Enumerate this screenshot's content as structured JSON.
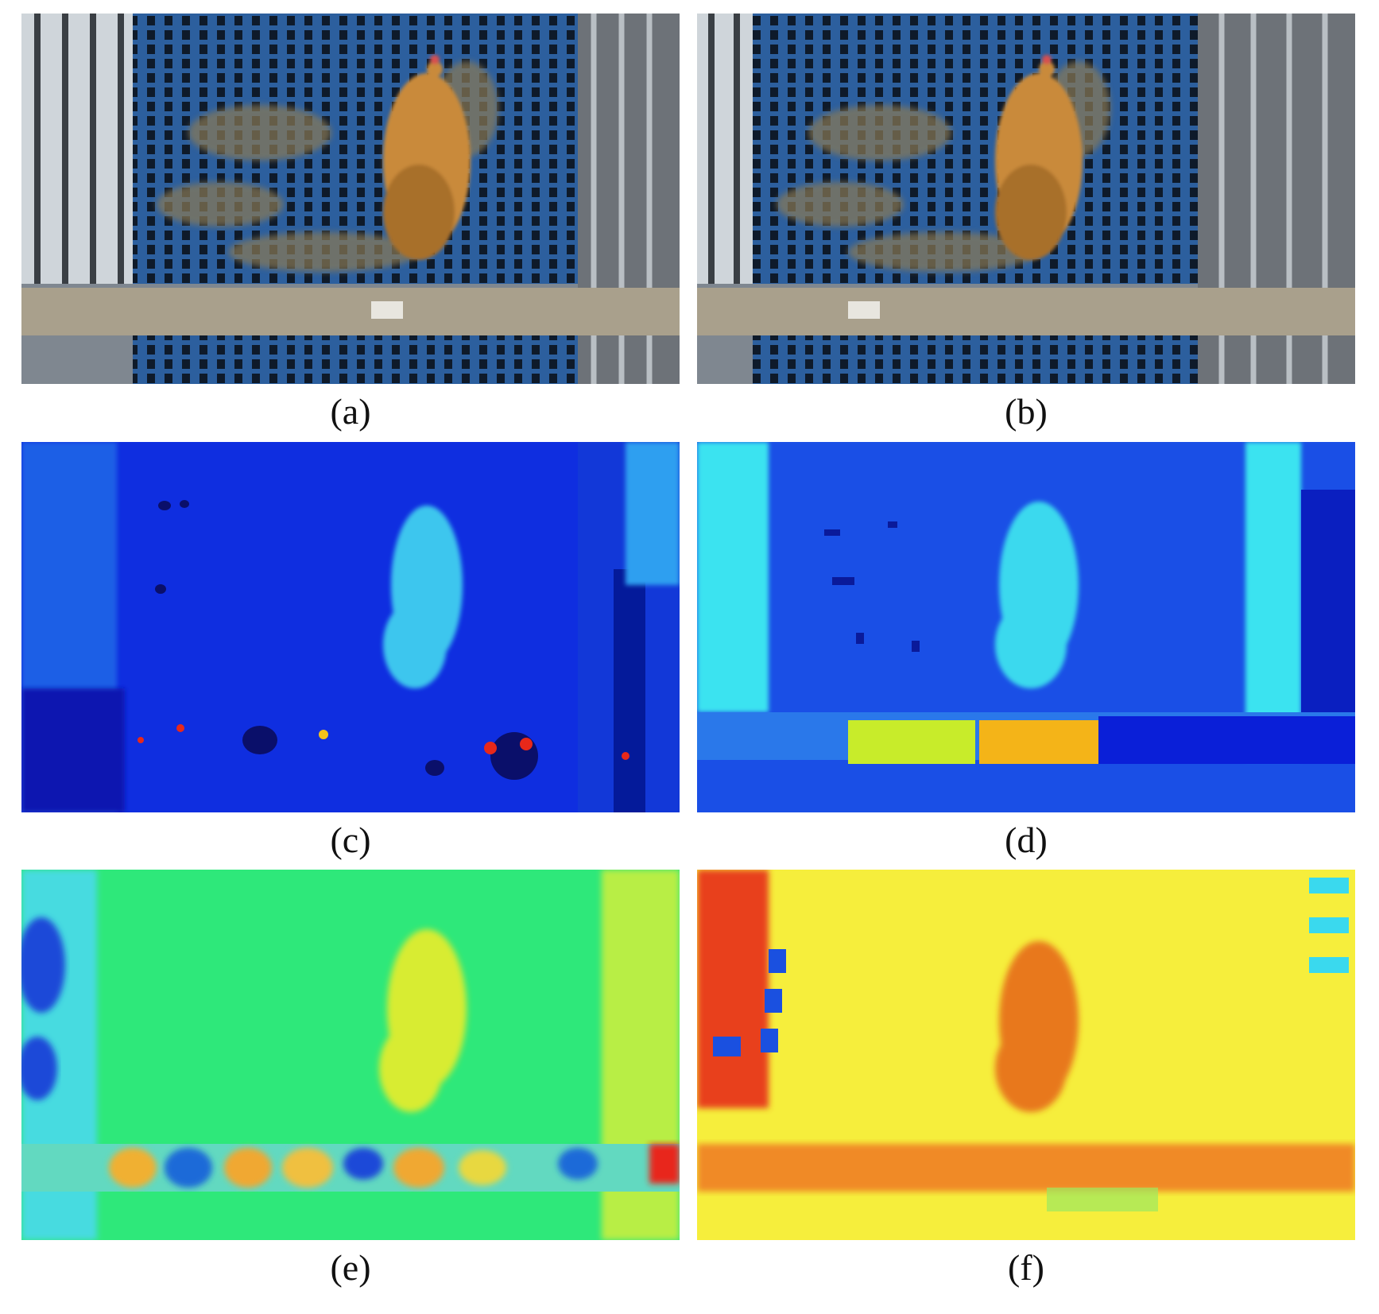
{
  "panels": [
    {
      "id": "a",
      "caption": "(a)",
      "kind": "rgb-left-view"
    },
    {
      "id": "b",
      "caption": "(b)",
      "kind": "rgb-right-view"
    },
    {
      "id": "c",
      "caption": "(c)",
      "kind": "depth-map-jet"
    },
    {
      "id": "d",
      "caption": "(d)",
      "kind": "depth-map-jet"
    },
    {
      "id": "e",
      "caption": "(e)",
      "kind": "depth-map-jet"
    },
    {
      "id": "f",
      "caption": "(f)",
      "kind": "depth-map-jet"
    }
  ],
  "colors": {
    "floor_blue": "#3d6fb0",
    "hen_brown": "#c98a3a",
    "beam_gray": "#a9a08c",
    "jet_dark_blue": "#0a1fd8",
    "jet_cyan": "#37e6f0",
    "jet_green": "#2ee87a",
    "jet_yellow": "#f4f23a",
    "jet_orange": "#f08a18",
    "jet_red": "#e8281a"
  }
}
